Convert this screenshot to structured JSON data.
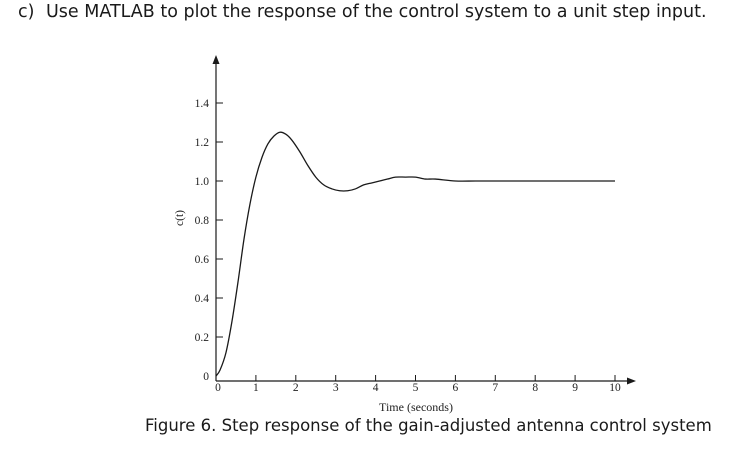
{
  "question": {
    "label": "c)",
    "text": "Use MATLAB to plot the response of the control system to a unit step input."
  },
  "caption": "Figure 6. Step response of the gain-adjusted antenna control system",
  "chart_data": {
    "type": "line",
    "xlabel": "Time (seconds)",
    "ylabel": "c(t)",
    "xlim": [
      0,
      10
    ],
    "ylim": [
      0,
      1.5
    ],
    "x_ticks": [
      "0",
      "1",
      "2",
      "3",
      "4",
      "5",
      "6",
      "7",
      "8",
      "9",
      "10"
    ],
    "y_ticks": [
      "0",
      "0.2",
      "0.4",
      "0.6",
      "0.8",
      "1.0",
      "1.2",
      "1.4"
    ],
    "grid": false,
    "series": [
      {
        "x": [
          0,
          0.1,
          0.25,
          0.4,
          0.55,
          0.7,
          0.85,
          1.0,
          1.15,
          1.3,
          1.45,
          1.6,
          1.75,
          1.9,
          2.1,
          2.3,
          2.5,
          2.7,
          2.9,
          3.1,
          3.3,
          3.5,
          3.7,
          3.9,
          4.1,
          4.3,
          4.5,
          4.75,
          5.0,
          5.25,
          5.5,
          6.0,
          6.5,
          7.0,
          7.5,
          8.0,
          8.5,
          9.0,
          9.5,
          10.0
        ],
        "y": [
          0,
          0.03,
          0.12,
          0.28,
          0.48,
          0.7,
          0.88,
          1.02,
          1.12,
          1.19,
          1.23,
          1.25,
          1.24,
          1.21,
          1.15,
          1.08,
          1.02,
          0.98,
          0.96,
          0.95,
          0.95,
          0.96,
          0.98,
          0.99,
          1.0,
          1.01,
          1.02,
          1.02,
          1.02,
          1.01,
          1.01,
          1.0,
          1.0,
          1.0,
          1.0,
          1.0,
          1.0,
          1.0,
          1.0,
          1.0
        ]
      }
    ]
  },
  "colors": {
    "axis": "#1a1a1a",
    "line": "#1a1a1a",
    "text": "#222222"
  }
}
